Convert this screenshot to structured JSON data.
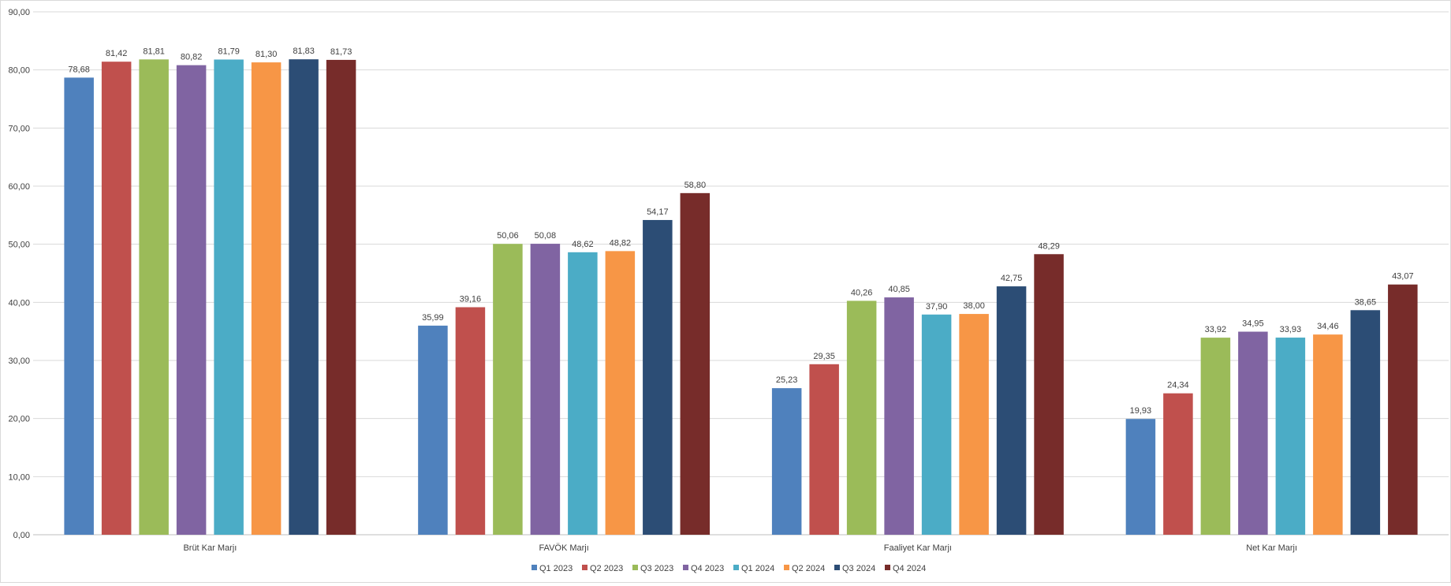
{
  "chart_data": {
    "type": "bar",
    "categories": [
      "Brüt Kar Marjı",
      "FAVÖK Marjı",
      "Faaliyet Kar Marjı",
      "Net Kar Marjı"
    ],
    "ylim": [
      0,
      90
    ],
    "yticks": [
      "0,00",
      "10,00",
      "20,00",
      "30,00",
      "40,00",
      "50,00",
      "60,00",
      "70,00",
      "80,00",
      "90,00"
    ],
    "ytick_values": [
      0,
      10,
      20,
      30,
      40,
      50,
      60,
      70,
      80,
      90
    ],
    "grid": true,
    "legend_position": "bottom",
    "series": [
      {
        "name": "Q1 2023",
        "color": "#4f81bd",
        "values": [
          78.68,
          35.99,
          25.23,
          19.93
        ],
        "labels": [
          "78,68",
          "35,99",
          "25,23",
          "19,93"
        ]
      },
      {
        "name": "Q2 2023",
        "color": "#c0504d",
        "values": [
          81.42,
          39.16,
          29.35,
          24.34
        ],
        "labels": [
          "81,42",
          "39,16",
          "29,35",
          "24,34"
        ]
      },
      {
        "name": "Q3 2023",
        "color": "#9bbb59",
        "values": [
          81.81,
          50.06,
          40.26,
          33.92
        ],
        "labels": [
          "81,81",
          "50,06",
          "40,26",
          "33,92"
        ]
      },
      {
        "name": "Q4 2023",
        "color": "#8064a2",
        "values": [
          80.82,
          50.08,
          40.85,
          34.95
        ],
        "labels": [
          "80,82",
          "50,08",
          "40,85",
          "34,95"
        ]
      },
      {
        "name": "Q1 2024",
        "color": "#4bacc6",
        "values": [
          81.79,
          48.62,
          37.9,
          33.93
        ],
        "labels": [
          "81,79",
          "48,62",
          "37,90",
          "33,93"
        ]
      },
      {
        "name": "Q2 2024",
        "color": "#f79646",
        "values": [
          81.3,
          48.82,
          38.0,
          34.46
        ],
        "labels": [
          "81,30",
          "48,82",
          "38,00",
          "34,46"
        ]
      },
      {
        "name": "Q3 2024",
        "color": "#2c4d75",
        "values": [
          81.83,
          54.17,
          42.75,
          38.65
        ],
        "labels": [
          "81,83",
          "54,17",
          "42,75",
          "38,65"
        ]
      },
      {
        "name": "Q4 2024",
        "color": "#772c2a",
        "values": [
          81.73,
          58.8,
          48.29,
          43.07
        ],
        "labels": [
          "81,73",
          "58,80",
          "48,29",
          "43,07"
        ]
      }
    ]
  }
}
